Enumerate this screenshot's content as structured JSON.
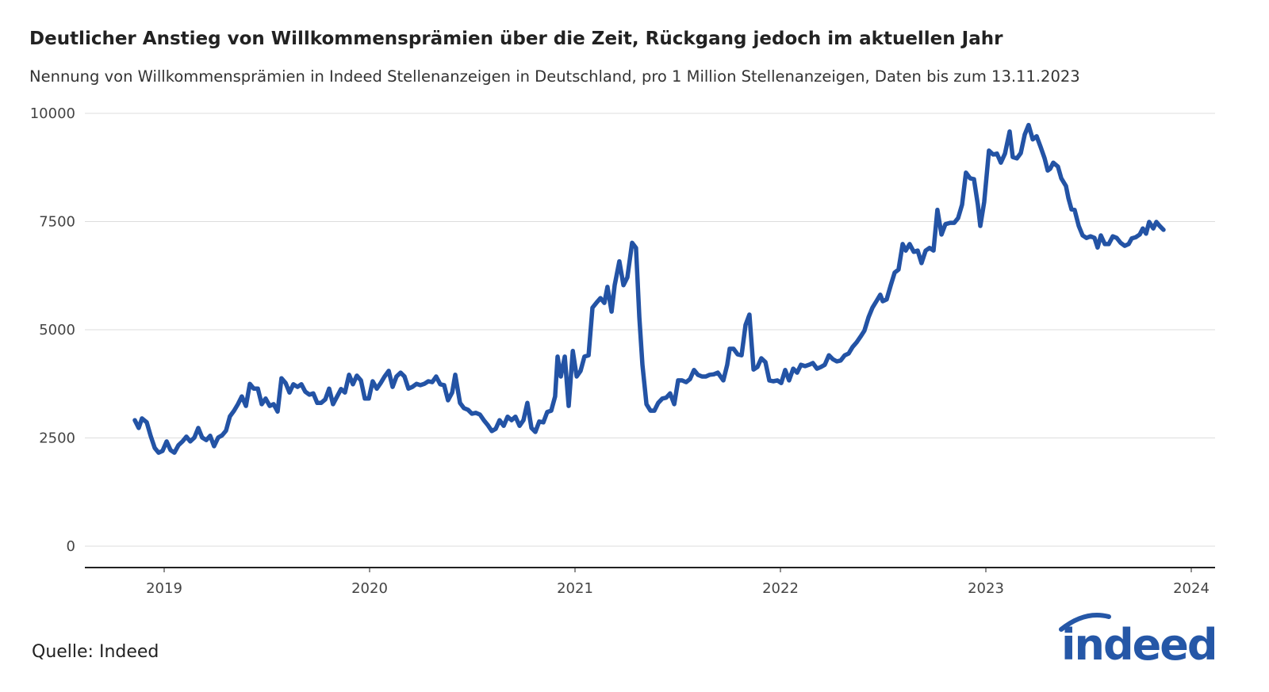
{
  "title": "Deutlicher Anstieg von Willkommensprämien über die Zeit, Rückgang jedoch im aktuellen Jahr",
  "subtitle": "Nennung von Willkommensprämien in Indeed Stellenanzeigen in Deutschland, pro 1 Million Stellenanzeigen, Daten bis zum 13.11.2023",
  "source": "Quelle: Indeed",
  "logo_text": "indeed",
  "colors": {
    "line": "#2353a5",
    "logo": "#2557a7",
    "grid": "#dddddd",
    "axis": "#222222"
  },
  "chart_data": {
    "type": "line",
    "title": "Deutlicher Anstieg von Willkommensprämien über die Zeit, Rückgang jedoch im aktuellen Jahr",
    "xlabel": "",
    "ylabel": "",
    "xlim": [
      2018.6,
      2024.1
    ],
    "ylim": [
      -500,
      10000
    ],
    "grid": true,
    "x_ticks": [
      "2019",
      "2020",
      "2021",
      "2022",
      "2023",
      "2024"
    ],
    "y_ticks": [
      "0",
      "2500",
      "5000",
      "7500",
      "10000"
    ],
    "points": [
      [
        2018.857,
        2910
      ],
      [
        2018.876,
        2730
      ],
      [
        2018.892,
        2950
      ],
      [
        2018.915,
        2860
      ],
      [
        2018.934,
        2550
      ],
      [
        2018.954,
        2270
      ],
      [
        2018.973,
        2160
      ],
      [
        2018.992,
        2200
      ],
      [
        2019.012,
        2420
      ],
      [
        2019.031,
        2220
      ],
      [
        2019.05,
        2160
      ],
      [
        2019.069,
        2330
      ],
      [
        2019.089,
        2420
      ],
      [
        2019.108,
        2530
      ],
      [
        2019.127,
        2420
      ],
      [
        2019.147,
        2510
      ],
      [
        2019.166,
        2730
      ],
      [
        2019.185,
        2510
      ],
      [
        2019.205,
        2450
      ],
      [
        2019.224,
        2550
      ],
      [
        2019.243,
        2310
      ],
      [
        2019.263,
        2510
      ],
      [
        2019.282,
        2560
      ],
      [
        2019.301,
        2670
      ],
      [
        2019.32,
        3000
      ],
      [
        2019.34,
        3130
      ],
      [
        2019.359,
        3280
      ],
      [
        2019.378,
        3460
      ],
      [
        2019.398,
        3240
      ],
      [
        2019.417,
        3750
      ],
      [
        2019.436,
        3640
      ],
      [
        2019.456,
        3640
      ],
      [
        2019.475,
        3280
      ],
      [
        2019.494,
        3410
      ],
      [
        2019.514,
        3240
      ],
      [
        2019.533,
        3280
      ],
      [
        2019.552,
        3110
      ],
      [
        2019.571,
        3880
      ],
      [
        2019.591,
        3770
      ],
      [
        2019.61,
        3550
      ],
      [
        2019.629,
        3740
      ],
      [
        2019.649,
        3680
      ],
      [
        2019.668,
        3740
      ],
      [
        2019.687,
        3570
      ],
      [
        2019.707,
        3500
      ],
      [
        2019.726,
        3530
      ],
      [
        2019.745,
        3310
      ],
      [
        2019.764,
        3310
      ],
      [
        2019.784,
        3390
      ],
      [
        2019.803,
        3640
      ],
      [
        2019.822,
        3280
      ],
      [
        2019.842,
        3460
      ],
      [
        2019.861,
        3630
      ],
      [
        2019.88,
        3550
      ],
      [
        2019.9,
        3960
      ],
      [
        2019.919,
        3740
      ],
      [
        2019.938,
        3940
      ],
      [
        2019.958,
        3830
      ],
      [
        2019.977,
        3410
      ],
      [
        2019.996,
        3410
      ],
      [
        2020.015,
        3810
      ],
      [
        2020.035,
        3640
      ],
      [
        2020.054,
        3770
      ],
      [
        2020.073,
        3920
      ],
      [
        2020.093,
        4050
      ],
      [
        2020.112,
        3680
      ],
      [
        2020.131,
        3920
      ],
      [
        2020.151,
        4010
      ],
      [
        2020.17,
        3920
      ],
      [
        2020.189,
        3640
      ],
      [
        2020.208,
        3680
      ],
      [
        2020.228,
        3750
      ],
      [
        2020.247,
        3720
      ],
      [
        2020.266,
        3750
      ],
      [
        2020.286,
        3810
      ],
      [
        2020.305,
        3790
      ],
      [
        2020.324,
        3920
      ],
      [
        2020.344,
        3740
      ],
      [
        2020.363,
        3720
      ],
      [
        2020.382,
        3370
      ],
      [
        2020.402,
        3550
      ],
      [
        2020.417,
        3960
      ],
      [
        2020.44,
        3310
      ],
      [
        2020.459,
        3190
      ],
      [
        2020.479,
        3150
      ],
      [
        2020.498,
        3060
      ],
      [
        2020.517,
        3080
      ],
      [
        2020.537,
        3040
      ],
      [
        2020.556,
        2910
      ],
      [
        2020.575,
        2800
      ],
      [
        2020.595,
        2660
      ],
      [
        2020.614,
        2710
      ],
      [
        2020.633,
        2910
      ],
      [
        2020.653,
        2780
      ],
      [
        2020.672,
        2990
      ],
      [
        2020.691,
        2910
      ],
      [
        2020.71,
        2990
      ],
      [
        2020.73,
        2780
      ],
      [
        2020.749,
        2910
      ],
      [
        2020.768,
        3310
      ],
      [
        2020.788,
        2730
      ],
      [
        2020.807,
        2640
      ],
      [
        2020.826,
        2880
      ],
      [
        2020.846,
        2860
      ],
      [
        2020.865,
        3100
      ],
      [
        2020.884,
        3130
      ],
      [
        2020.903,
        3460
      ],
      [
        2020.915,
        4380
      ],
      [
        2020.931,
        3920
      ],
      [
        2020.95,
        4380
      ],
      [
        2020.969,
        3240
      ],
      [
        2020.989,
        4510
      ],
      [
        2021.008,
        3920
      ],
      [
        2021.027,
        4050
      ],
      [
        2021.046,
        4380
      ],
      [
        2021.066,
        4410
      ],
      [
        2021.085,
        5510
      ],
      [
        2021.104,
        5620
      ],
      [
        2021.124,
        5730
      ],
      [
        2021.143,
        5620
      ],
      [
        2021.158,
        5990
      ],
      [
        2021.178,
        5420
      ],
      [
        2021.193,
        6030
      ],
      [
        2021.216,
        6580
      ],
      [
        2021.236,
        6030
      ],
      [
        2021.255,
        6210
      ],
      [
        2021.278,
        7010
      ],
      [
        2021.297,
        6890
      ],
      [
        2021.313,
        5290
      ],
      [
        2021.328,
        4190
      ],
      [
        2021.348,
        3280
      ],
      [
        2021.367,
        3130
      ],
      [
        2021.386,
        3130
      ],
      [
        2021.405,
        3310
      ],
      [
        2021.425,
        3410
      ],
      [
        2021.444,
        3430
      ],
      [
        2021.463,
        3530
      ],
      [
        2021.483,
        3280
      ],
      [
        2021.502,
        3830
      ],
      [
        2021.521,
        3830
      ],
      [
        2021.541,
        3790
      ],
      [
        2021.56,
        3860
      ],
      [
        2021.579,
        4070
      ],
      [
        2021.598,
        3960
      ],
      [
        2021.618,
        3920
      ],
      [
        2021.637,
        3920
      ],
      [
        2021.656,
        3960
      ],
      [
        2021.676,
        3970
      ],
      [
        2021.695,
        4010
      ],
      [
        2021.722,
        3830
      ],
      [
        2021.741,
        4190
      ],
      [
        2021.753,
        4560
      ],
      [
        2021.772,
        4560
      ],
      [
        2021.792,
        4430
      ],
      [
        2021.811,
        4410
      ],
      [
        2021.83,
        5110
      ],
      [
        2021.849,
        5350
      ],
      [
        2021.869,
        4080
      ],
      [
        2021.888,
        4140
      ],
      [
        2021.907,
        4340
      ],
      [
        2021.927,
        4250
      ],
      [
        2021.946,
        3830
      ],
      [
        2021.965,
        3810
      ],
      [
        2021.985,
        3830
      ],
      [
        2022.004,
        3770
      ],
      [
        2022.023,
        4070
      ],
      [
        2022.042,
        3830
      ],
      [
        2022.062,
        4100
      ],
      [
        2022.081,
        4010
      ],
      [
        2022.1,
        4190
      ],
      [
        2022.12,
        4160
      ],
      [
        2022.139,
        4190
      ],
      [
        2022.158,
        4230
      ],
      [
        2022.178,
        4100
      ],
      [
        2022.197,
        4140
      ],
      [
        2022.216,
        4190
      ],
      [
        2022.236,
        4410
      ],
      [
        2022.255,
        4320
      ],
      [
        2022.274,
        4270
      ],
      [
        2022.293,
        4290
      ],
      [
        2022.313,
        4410
      ],
      [
        2022.332,
        4450
      ],
      [
        2022.351,
        4600
      ],
      [
        2022.371,
        4710
      ],
      [
        2022.39,
        4840
      ],
      [
        2022.409,
        4980
      ],
      [
        2022.429,
        5290
      ],
      [
        2022.448,
        5510
      ],
      [
        2022.467,
        5660
      ],
      [
        2022.486,
        5810
      ],
      [
        2022.498,
        5660
      ],
      [
        2022.517,
        5700
      ],
      [
        2022.537,
        6030
      ],
      [
        2022.556,
        6320
      ],
      [
        2022.575,
        6390
      ],
      [
        2022.595,
        6980
      ],
      [
        2022.61,
        6830
      ],
      [
        2022.629,
        6980
      ],
      [
        2022.649,
        6800
      ],
      [
        2022.668,
        6830
      ],
      [
        2022.687,
        6540
      ],
      [
        2022.707,
        6830
      ],
      [
        2022.726,
        6890
      ],
      [
        2022.745,
        6830
      ],
      [
        2022.764,
        7770
      ],
      [
        2022.784,
        7200
      ],
      [
        2022.803,
        7440
      ],
      [
        2022.826,
        7470
      ],
      [
        2022.846,
        7470
      ],
      [
        2022.865,
        7580
      ],
      [
        2022.884,
        7890
      ],
      [
        2022.903,
        8630
      ],
      [
        2022.923,
        8500
      ],
      [
        2022.942,
        8480
      ],
      [
        2022.961,
        7890
      ],
      [
        2022.973,
        7400
      ],
      [
        2022.992,
        7950
      ],
      [
        2023.015,
        9140
      ],
      [
        2023.035,
        9050
      ],
      [
        2023.054,
        9070
      ],
      [
        2023.073,
        8860
      ],
      [
        2023.093,
        9070
      ],
      [
        2023.116,
        9580
      ],
      [
        2023.131,
        8990
      ],
      [
        2023.151,
        8960
      ],
      [
        2023.17,
        9080
      ],
      [
        2023.189,
        9510
      ],
      [
        2023.208,
        9730
      ],
      [
        2023.228,
        9400
      ],
      [
        2023.247,
        9470
      ],
      [
        2023.266,
        9230
      ],
      [
        2023.286,
        8960
      ],
      [
        2023.301,
        8680
      ],
      [
        2023.313,
        8720
      ],
      [
        2023.328,
        8860
      ],
      [
        2023.351,
        8770
      ],
      [
        2023.367,
        8500
      ],
      [
        2023.39,
        8320
      ],
      [
        2023.402,
        8040
      ],
      [
        2023.417,
        7780
      ],
      [
        2023.432,
        7770
      ],
      [
        2023.452,
        7400
      ],
      [
        2023.471,
        7180
      ],
      [
        2023.49,
        7120
      ],
      [
        2023.51,
        7160
      ],
      [
        2023.529,
        7120
      ],
      [
        2023.544,
        6900
      ],
      [
        2023.56,
        7180
      ],
      [
        2023.579,
        6980
      ],
      [
        2023.598,
        6980
      ],
      [
        2023.618,
        7160
      ],
      [
        2023.637,
        7120
      ],
      [
        2023.656,
        7010
      ],
      [
        2023.676,
        6940
      ],
      [
        2023.695,
        6980
      ],
      [
        2023.71,
        7110
      ],
      [
        2023.73,
        7140
      ],
      [
        2023.749,
        7200
      ],
      [
        2023.764,
        7340
      ],
      [
        2023.78,
        7220
      ],
      [
        2023.795,
        7490
      ],
      [
        2023.815,
        7340
      ],
      [
        2023.83,
        7490
      ],
      [
        2023.846,
        7400
      ],
      [
        2023.865,
        7310
      ]
    ]
  }
}
